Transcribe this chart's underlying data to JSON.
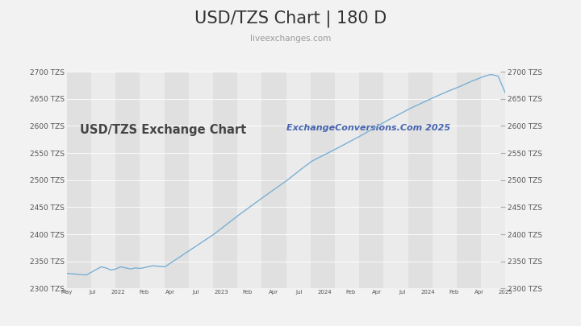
{
  "title": "USD/TZS Chart | 180 D",
  "subtitle": "liveexchanges.com",
  "watermark_left": "USD/TZS Exchange Chart",
  "watermark_right": "ExchangeConversions.Com 2025",
  "y_min": 2300,
  "y_max": 2700,
  "y_ticks": [
    2300,
    2350,
    2400,
    2450,
    2500,
    2550,
    2600,
    2650,
    2700
  ],
  "line_color": "#7ab0d4",
  "bg_color": "#f2f2f2",
  "plot_bg_alt": "#e0e0e0",
  "plot_bg_main": "#ebebeb",
  "title_color": "#333333",
  "subtitle_color": "#999999",
  "watermark_left_color": "#333333",
  "watermark_right_color": "#3355aa",
  "tick_label_color": "#555555",
  "n_stripes": 18,
  "x_tick_labels": [
    "May",
    "Jul",
    "2022",
    "Feb",
    "Apr",
    "Jul",
    "2023",
    "Feb",
    "Apr",
    "Jul",
    "2024",
    "Feb",
    "Apr",
    "Jul",
    "2024",
    "Feb",
    "Apr",
    "2025"
  ],
  "data_x": [
    0,
    5,
    8,
    10,
    12,
    14,
    16,
    18,
    20,
    22,
    24,
    26,
    28,
    30,
    35,
    40,
    50,
    60,
    70,
    80,
    90,
    95,
    100,
    110,
    120,
    130,
    140,
    150,
    155,
    160,
    165,
    170,
    173,
    176,
    179
  ],
  "data_y": [
    2328,
    2326,
    2325,
    2330,
    2335,
    2340,
    2338,
    2334,
    2336,
    2340,
    2338,
    2336,
    2338,
    2337,
    2342,
    2340,
    2370,
    2400,
    2435,
    2468,
    2500,
    2518,
    2535,
    2558,
    2582,
    2608,
    2632,
    2653,
    2663,
    2672,
    2682,
    2691,
    2695,
    2692,
    2660
  ]
}
